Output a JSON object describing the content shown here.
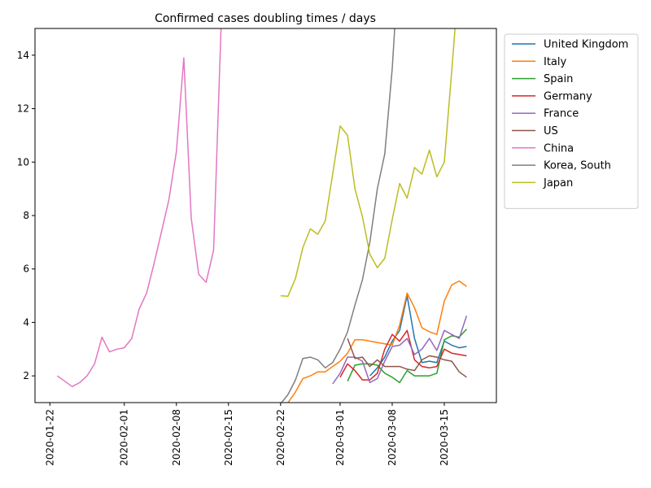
{
  "chart_data": {
    "type": "line",
    "title": "Confirmed cases doubling times / days",
    "xlabel": "",
    "ylabel": "",
    "x_start": "2020-01-22",
    "xlim": [
      "2020-01-20",
      "2020-03-22"
    ],
    "ylim": [
      1,
      15
    ],
    "xticks": [
      "2020-01-22",
      "2020-02-01",
      "2020-02-08",
      "2020-02-15",
      "2020-02-22",
      "2020-03-01",
      "2020-03-08",
      "2020-03-15"
    ],
    "yticks": [
      2,
      4,
      6,
      8,
      10,
      12,
      14
    ],
    "grid": false,
    "legend_position": "outside-right",
    "series": [
      {
        "name": "United Kingdom",
        "color": "#1f77b4",
        "start": "2020-03-05",
        "values": [
          2.0,
          2.3,
          2.7,
          3.3,
          3.7,
          5.0,
          3.4,
          2.5,
          2.55,
          2.5,
          3.3,
          3.15,
          3.05,
          3.1
        ]
      },
      {
        "name": "Italy",
        "color": "#ff7f0e",
        "start": "2020-02-23",
        "values": [
          1.0,
          1.4,
          1.9,
          2.0,
          2.15,
          2.15,
          2.35,
          2.55,
          2.85,
          3.35,
          3.35,
          3.3,
          3.25,
          3.2,
          3.15,
          3.9,
          5.1,
          4.55,
          3.8,
          3.65,
          3.55,
          4.8,
          5.4,
          5.55,
          5.35
        ]
      },
      {
        "name": "Spain",
        "color": "#2ca02c",
        "start": "2020-03-02",
        "values": [
          1.8,
          2.4,
          2.45,
          2.45,
          2.4,
          2.1,
          1.95,
          1.75,
          2.2,
          2.0,
          2.0,
          2.0,
          2.1,
          3.35,
          3.5,
          3.45,
          3.75
        ]
      },
      {
        "name": "Germany",
        "color": "#d62728",
        "start": "2020-03-01",
        "values": [
          1.95,
          2.45,
          2.2,
          1.85,
          1.85,
          2.1,
          3.0,
          3.55,
          3.3,
          3.7,
          2.6,
          2.35,
          2.3,
          2.35,
          3.0,
          2.85,
          2.8,
          2.75
        ]
      },
      {
        "name": "France",
        "color": "#9467bd",
        "start": "2020-02-29",
        "values": [
          1.7,
          2.1,
          2.7,
          2.7,
          2.55,
          1.75,
          1.9,
          2.55,
          3.1,
          3.15,
          3.4,
          2.8,
          3.0,
          3.4,
          2.95,
          3.7,
          3.55,
          3.4,
          4.25
        ]
      },
      {
        "name": "US",
        "color": "#8c564b",
        "start": "2020-03-02",
        "values": [
          3.4,
          2.65,
          2.7,
          2.35,
          2.6,
          2.35,
          2.35,
          2.35,
          2.25,
          2.2,
          2.6,
          2.75,
          2.7,
          2.6,
          2.55,
          2.15,
          1.95
        ]
      },
      {
        "name": "China",
        "color": "#e377c2",
        "start": "2020-01-23",
        "values": [
          2.0,
          1.8,
          1.6,
          1.75,
          2.0,
          2.45,
          3.45,
          2.9,
          3.0,
          3.05,
          3.4,
          4.5,
          5.1,
          6.2,
          7.4,
          8.6,
          10.4,
          13.9,
          7.9,
          5.8,
          5.5,
          6.7,
          15.0
        ]
      },
      {
        "name": "Korea, South",
        "color": "#7f7f7f",
        "start": "2020-02-20",
        "values": [
          0.7,
          0.8,
          0.95,
          1.3,
          1.85,
          2.65,
          2.7,
          2.6,
          2.3,
          2.5,
          3.0,
          3.65,
          4.65,
          5.6,
          7.0,
          9.0,
          10.3,
          13.5,
          18.0
        ]
      },
      {
        "name": "Japan",
        "color": "#bcbd22",
        "start": "2020-02-22",
        "values": [
          5.0,
          4.98,
          5.65,
          6.8,
          7.5,
          7.3,
          7.8,
          9.55,
          11.35,
          11.0,
          9.0,
          7.95,
          6.55,
          6.05,
          6.4,
          7.85,
          9.2,
          8.65,
          9.8,
          9.55,
          10.45,
          9.45,
          10.0,
          13.4,
          17.0
        ]
      }
    ]
  }
}
